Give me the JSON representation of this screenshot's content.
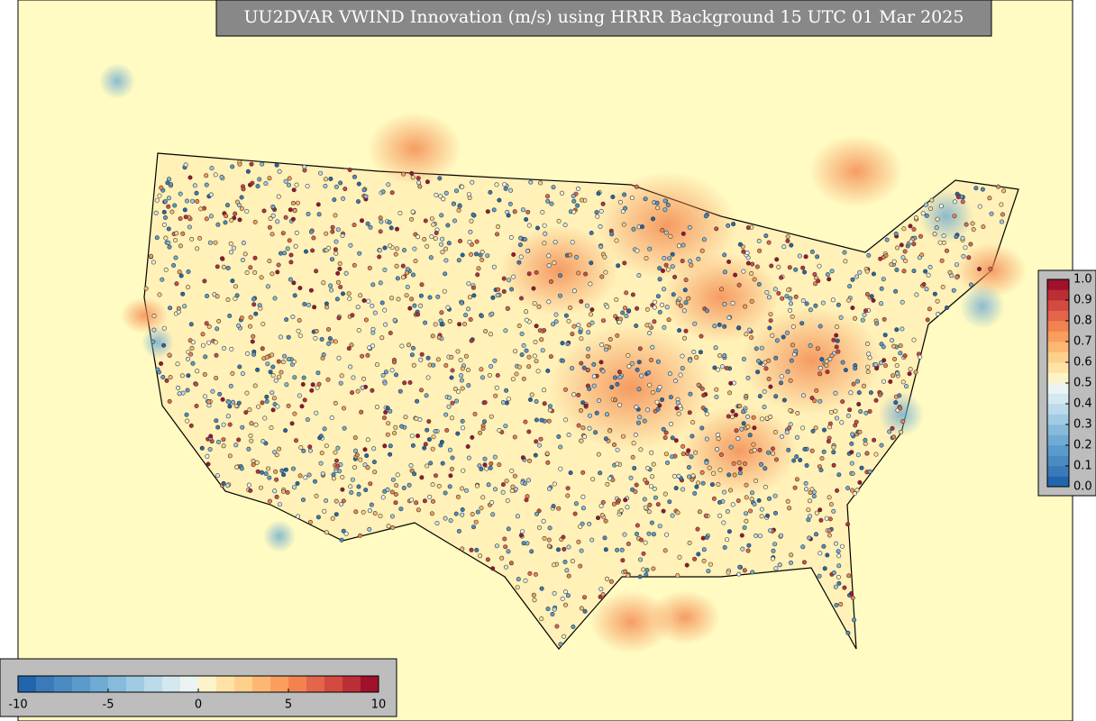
{
  "title": "UU2DVAR VWIND Innovation (m/s) using HRRR Background 15 UTC 01 Mar 2025",
  "colormap": [
    "#2166ac",
    "#3a7ab8",
    "#4a8cc2",
    "#5a9bcb",
    "#6fabd3",
    "#87bbdb",
    "#a0cbe3",
    "#bbdaeb",
    "#d4e8f0",
    "#ebf4f3",
    "#fdf3c8",
    "#fee3a5",
    "#fdd08b",
    "#fcb872",
    "#f99e5d",
    "#f2834e",
    "#e3654a",
    "#d34a40",
    "#bd2d36",
    "#a0112c"
  ],
  "colorbar_horizontal": {
    "lim": [
      -10,
      10
    ],
    "ticks": [
      -10,
      -5,
      0,
      5,
      10
    ]
  },
  "colorbar_vertical": {
    "lim": [
      0,
      1
    ],
    "ticks": [
      {
        "value": 0,
        "label": "0.0"
      },
      0.1,
      0.2,
      0.3,
      0.4,
      0.5,
      0.6,
      0.7,
      0.8,
      0.9,
      {
        "value": 1,
        "label": "1.0"
      }
    ]
  }
}
